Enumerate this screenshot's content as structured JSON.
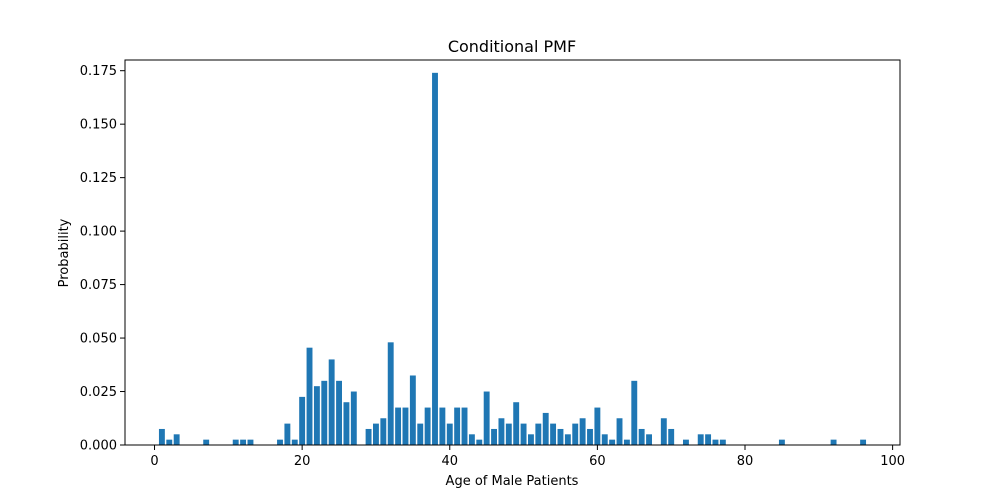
{
  "chart_data": {
    "type": "bar",
    "title": "Conditional PMF",
    "xlabel": "Age of Male Patients",
    "ylabel": "Probability",
    "xlim": [
      -4,
      101
    ],
    "ylim": [
      0,
      0.18
    ],
    "xticks": [
      0,
      20,
      40,
      60,
      80,
      100
    ],
    "yticks": [
      0.0,
      0.025,
      0.05,
      0.075,
      0.1,
      0.125,
      0.15,
      0.175
    ],
    "ytick_labels": [
      "0.000",
      "0.025",
      "0.050",
      "0.075",
      "0.100",
      "0.125",
      "0.150",
      "0.175"
    ],
    "bar_width": 0.8,
    "grid": false,
    "bar_color": "#1f77b4",
    "x": [
      1,
      2,
      3,
      7,
      11,
      12,
      13,
      17,
      18,
      19,
      20,
      21,
      22,
      23,
      24,
      25,
      26,
      27,
      29,
      30,
      31,
      32,
      33,
      34,
      35,
      36,
      37,
      38,
      39,
      40,
      41,
      42,
      43,
      44,
      45,
      46,
      47,
      48,
      49,
      50,
      51,
      52,
      53,
      54,
      55,
      56,
      57,
      58,
      59,
      60,
      61,
      62,
      63,
      64,
      65,
      66,
      67,
      69,
      70,
      72,
      74,
      75,
      76,
      77,
      85,
      92,
      96
    ],
    "values": [
      0.0075,
      0.0025,
      0.005,
      0.0025,
      0.0025,
      0.0025,
      0.0025,
      0.0025,
      0.01,
      0.0025,
      0.0225,
      0.0455,
      0.0275,
      0.03,
      0.04,
      0.03,
      0.02,
      0.025,
      0.0075,
      0.01,
      0.0125,
      0.048,
      0.0175,
      0.0175,
      0.0325,
      0.01,
      0.0175,
      0.174,
      0.0175,
      0.01,
      0.0175,
      0.0175,
      0.005,
      0.0025,
      0.025,
      0.0075,
      0.0125,
      0.01,
      0.02,
      0.01,
      0.005,
      0.01,
      0.015,
      0.01,
      0.0075,
      0.005,
      0.01,
      0.0125,
      0.0075,
      0.0175,
      0.005,
      0.0025,
      0.0125,
      0.0025,
      0.03,
      0.0075,
      0.005,
      0.0125,
      0.0075,
      0.0025,
      0.005,
      0.005,
      0.0025,
      0.0025,
      0.0025,
      0.0025,
      0.0025
    ]
  }
}
